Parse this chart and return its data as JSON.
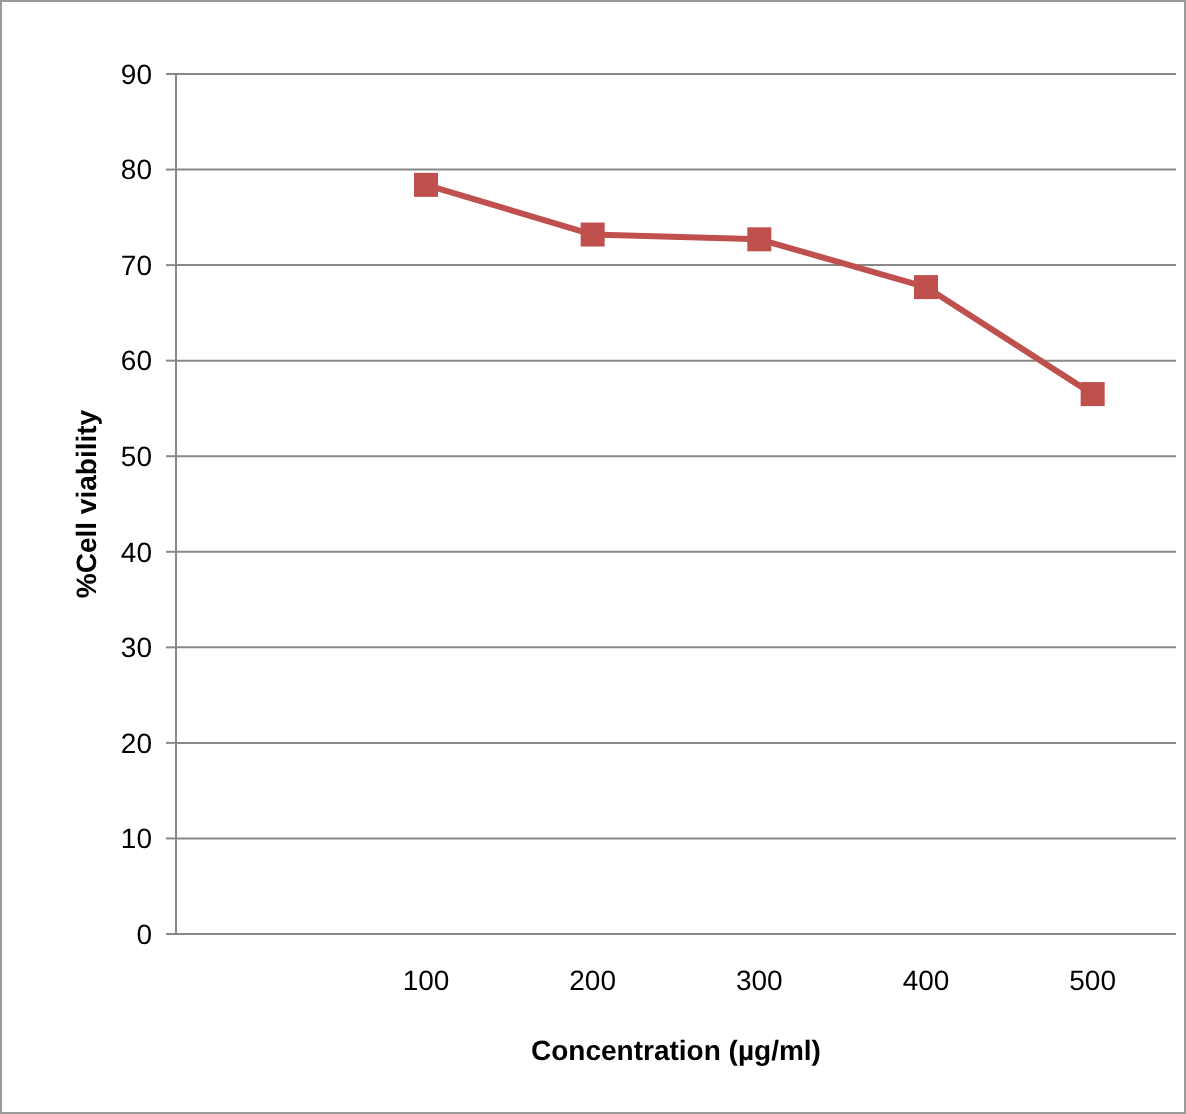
{
  "chart_data": {
    "type": "line",
    "xlabel": "Concentration (µg/ml)",
    "ylabel": "%Cell viability",
    "categories": [
      null,
      "100",
      "200",
      "300",
      "400",
      "500"
    ],
    "series": [
      {
        "color": "#c0504d",
        "values": [
          null,
          78.4,
          73.2,
          72.7,
          67.7,
          56.5
        ]
      }
    ],
    "ylim": [
      0,
      90
    ],
    "yticks": [
      0,
      10,
      20,
      30,
      40,
      50,
      60,
      70,
      80,
      90
    ],
    "grid": "y",
    "marker": "square",
    "line_style": "solid"
  }
}
